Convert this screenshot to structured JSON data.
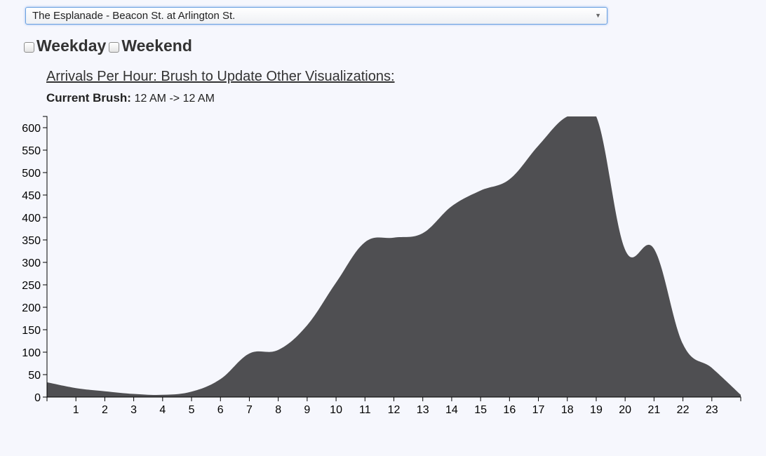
{
  "station_select": {
    "value": "The Esplanade - Beacon St. at Arlington St."
  },
  "filters": {
    "weekday_label": "Weekday",
    "weekend_label": "Weekend"
  },
  "chart_heading": {
    "title": "Arrivals Per Hour: Brush to Update Other Visualizations:",
    "brush_label": "Current Brush:",
    "brush_value": "12 AM -> 12 AM"
  },
  "colors": {
    "area": "#4f4f52",
    "axis": "#000000",
    "background": "#f6f7fd"
  },
  "chart_data": {
    "type": "area",
    "title": "Arrivals Per Hour: Brush to Update Other Visualizations:",
    "xlabel": "",
    "ylabel": "",
    "x": [
      0,
      1,
      2,
      3,
      4,
      5,
      6,
      7,
      8,
      9,
      10,
      11,
      12,
      13,
      14,
      15,
      16,
      17,
      18,
      19,
      20,
      21,
      22,
      23,
      24
    ],
    "values": [
      33,
      20,
      13,
      7,
      5,
      12,
      40,
      97,
      105,
      160,
      255,
      345,
      355,
      365,
      425,
      460,
      485,
      560,
      635,
      635,
      328,
      330,
      118,
      65,
      5
    ],
    "xlim": [
      0,
      24
    ],
    "ylim": [
      0,
      625
    ],
    "x_ticks": [
      "1",
      "2",
      "3",
      "4",
      "5",
      "6",
      "7",
      "8",
      "9",
      "10",
      "11",
      "12",
      "13",
      "14",
      "15",
      "16",
      "17",
      "18",
      "19",
      "20",
      "21",
      "22",
      "23"
    ],
    "y_ticks": [
      "0",
      "50",
      "100",
      "150",
      "200",
      "250",
      "300",
      "350",
      "400",
      "450",
      "500",
      "550",
      "600"
    ],
    "grid": false,
    "legend": "none"
  }
}
